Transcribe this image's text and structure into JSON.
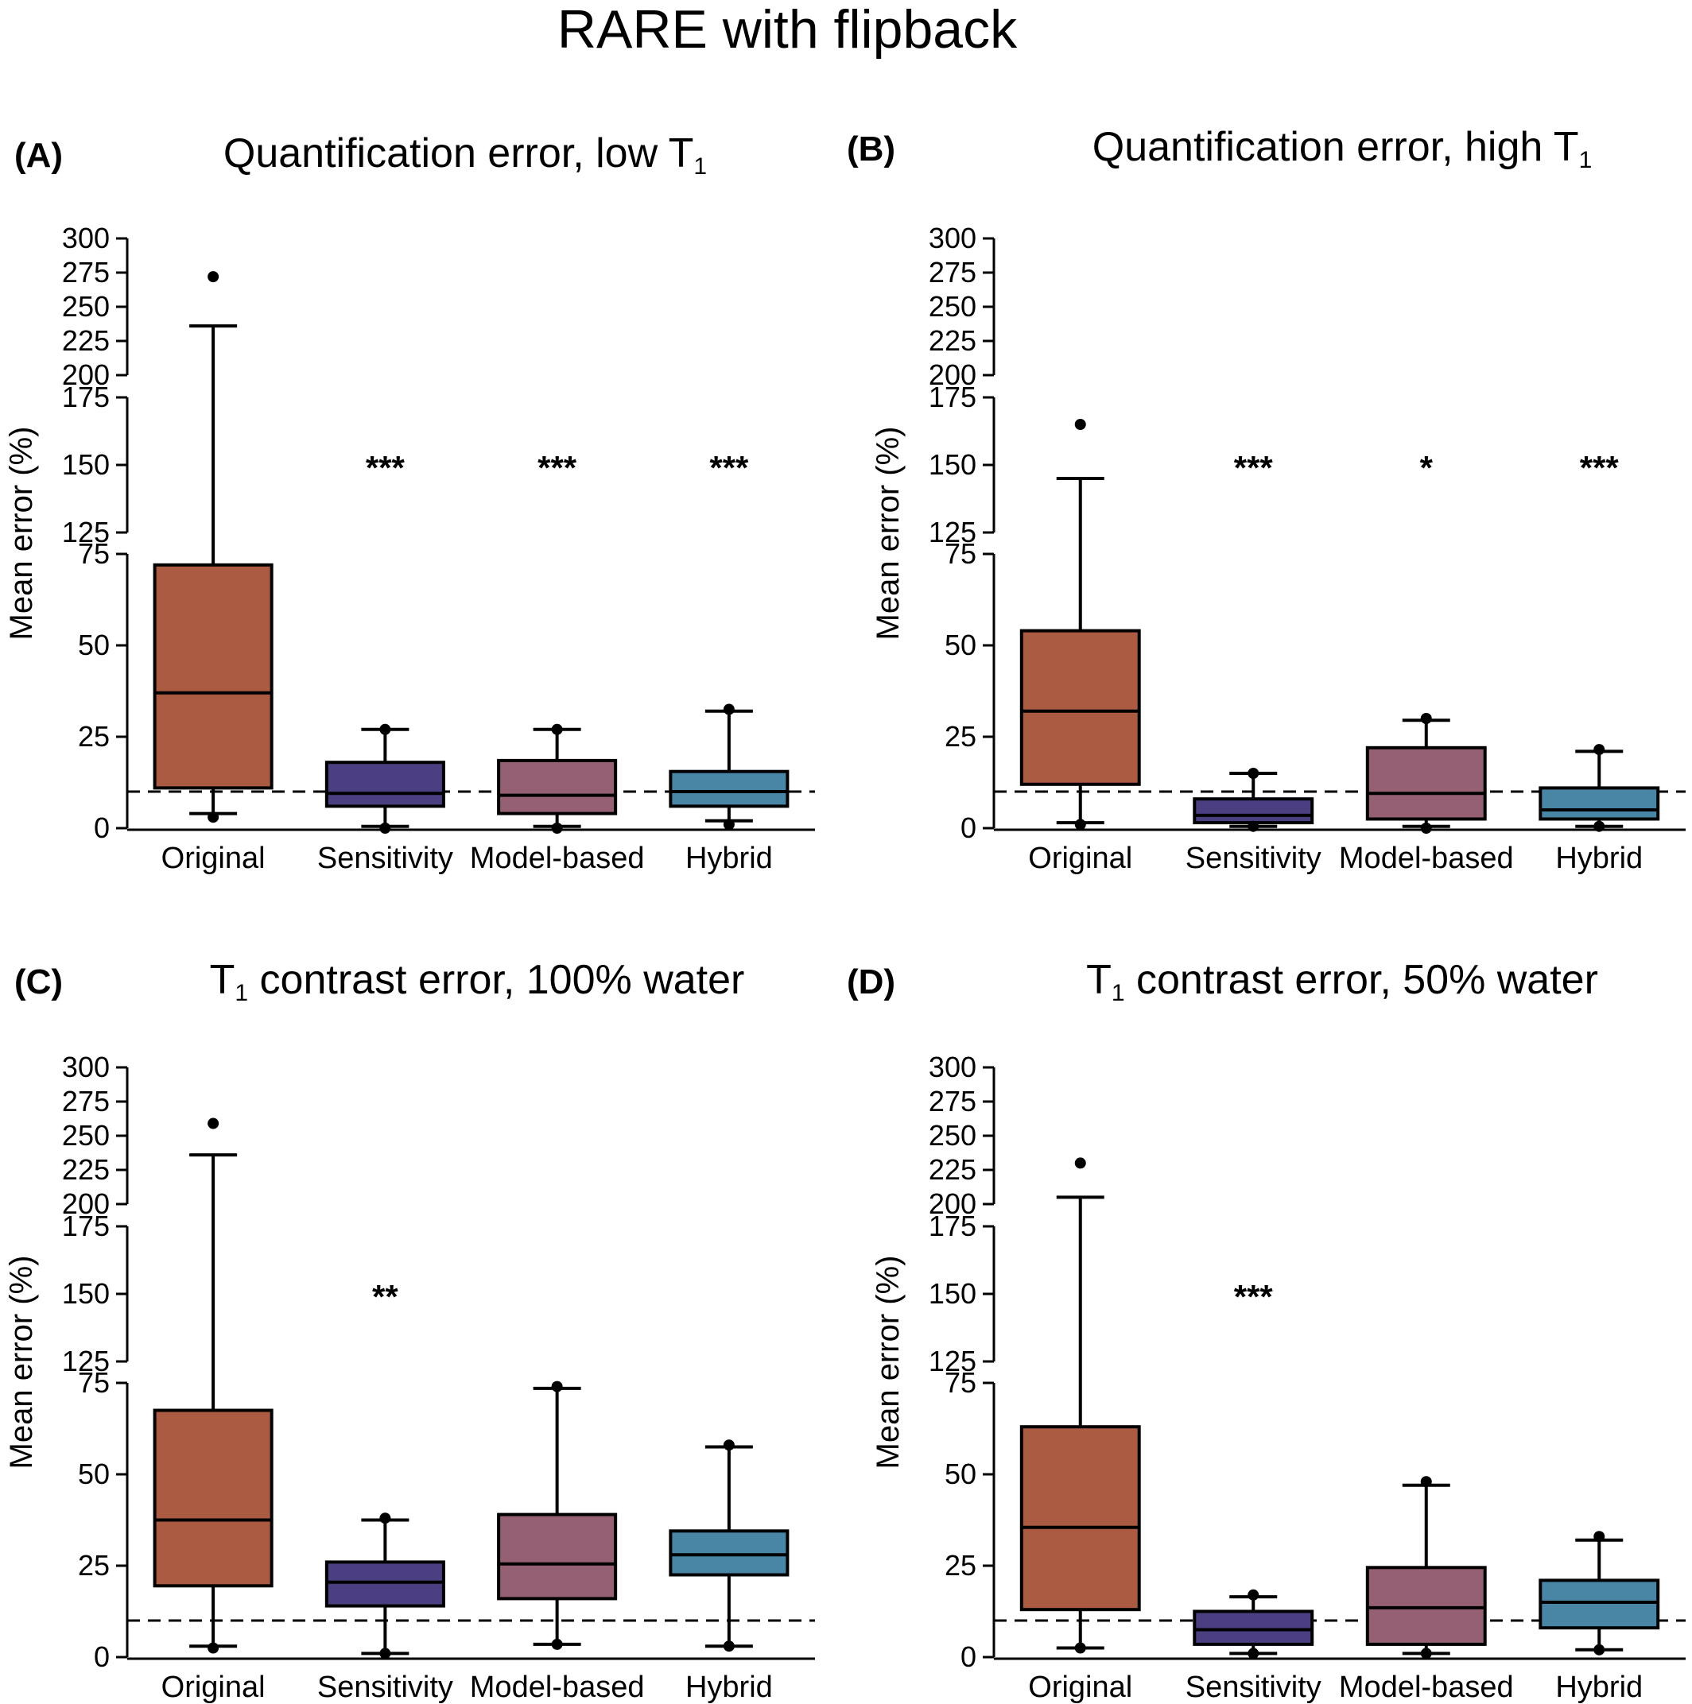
{
  "figure_title": "RARE with flipback",
  "colors": {
    "Original": "#ab5b42",
    "Sensitivity": "#4b3f82",
    "Model-based": "#966074",
    "Hybrid": "#4986a6",
    "reference_line": "#000000"
  },
  "chart_data": [
    {
      "type": "box",
      "panel_label": "(A)",
      "title_main": "Quantification error, low T",
      "title_sub": "1",
      "title_suffix": "",
      "ylabel": "Mean error (%)",
      "categories": [
        "Original",
        "Sensitivity",
        "Model-based",
        "Hybrid"
      ],
      "broken_axis": [
        [
          0,
          75
        ],
        [
          125,
          175
        ],
        [
          200,
          300
        ]
      ],
      "yticks": [
        [
          0,
          25,
          50,
          75
        ],
        [
          125,
          150,
          175
        ],
        [
          200,
          225,
          250,
          275,
          300
        ]
      ],
      "reference_line": 10,
      "boxes": [
        {
          "category": "Original",
          "q1": 11,
          "median": 37,
          "q3": 72,
          "whisker_low": 4,
          "whisker_high": 236,
          "outliers_low": [
            3
          ],
          "outliers_high": [
            272
          ],
          "significance": ""
        },
        {
          "category": "Sensitivity",
          "q1": 6,
          "median": 9.5,
          "q3": 18,
          "whisker_low": 0.5,
          "whisker_high": 27,
          "outliers_low": [
            0
          ],
          "outliers_high": [
            27
          ],
          "significance": "***"
        },
        {
          "category": "Model-based",
          "q1": 4,
          "median": 9,
          "q3": 18.5,
          "whisker_low": 0.5,
          "whisker_high": 27,
          "outliers_low": [
            0
          ],
          "outliers_high": [
            27
          ],
          "significance": "***"
        },
        {
          "category": "Hybrid",
          "q1": 6,
          "median": 10,
          "q3": 15.5,
          "whisker_low": 2,
          "whisker_high": 32,
          "outliers_low": [
            1
          ],
          "outliers_high": [
            32.5
          ],
          "significance": "***"
        }
      ]
    },
    {
      "type": "box",
      "panel_label": "(B)",
      "title_main": "Quantification error, high T",
      "title_sub": "1",
      "title_suffix": "",
      "ylabel": "Mean error (%)",
      "categories": [
        "Original",
        "Sensitivity",
        "Model-based",
        "Hybrid"
      ],
      "broken_axis": [
        [
          0,
          75
        ],
        [
          125,
          175
        ],
        [
          200,
          300
        ]
      ],
      "yticks": [
        [
          0,
          25,
          50,
          75
        ],
        [
          125,
          150,
          175
        ],
        [
          200,
          225,
          250,
          275,
          300
        ]
      ],
      "reference_line": 10,
      "boxes": [
        {
          "category": "Original",
          "q1": 12,
          "median": 32,
          "q3": 54,
          "whisker_low": 1.5,
          "whisker_high": 145,
          "outliers_low": [
            1
          ],
          "outliers_high": [
            165
          ],
          "significance": ""
        },
        {
          "category": "Sensitivity",
          "q1": 1.5,
          "median": 3.5,
          "q3": 8,
          "whisker_low": 0.5,
          "whisker_high": 15,
          "outliers_low": [
            0.5
          ],
          "outliers_high": [
            15
          ],
          "significance": "***"
        },
        {
          "category": "Model-based",
          "q1": 2.5,
          "median": 9.5,
          "q3": 22,
          "whisker_low": 0.5,
          "whisker_high": 29.5,
          "outliers_low": [
            0
          ],
          "outliers_high": [
            30
          ],
          "significance": "*"
        },
        {
          "category": "Hybrid",
          "q1": 2.5,
          "median": 5,
          "q3": 11,
          "whisker_low": 0.5,
          "whisker_high": 21,
          "outliers_low": [
            0.5
          ],
          "outliers_high": [
            21.5
          ],
          "significance": "***"
        }
      ]
    },
    {
      "type": "box",
      "panel_label": "(C)",
      "title_main": "T",
      "title_sub": "1",
      "title_suffix": " contrast error, 100% water",
      "ylabel": "Mean error (%)",
      "categories": [
        "Original",
        "Sensitivity",
        "Model-based",
        "Hybrid"
      ],
      "broken_axis": [
        [
          0,
          75
        ],
        [
          125,
          175
        ],
        [
          200,
          300
        ]
      ],
      "yticks": [
        [
          0,
          25,
          50,
          75
        ],
        [
          125,
          150,
          175
        ],
        [
          200,
          225,
          250,
          275,
          300
        ]
      ],
      "reference_line": 10,
      "boxes": [
        {
          "category": "Original",
          "q1": 19.5,
          "median": 37.5,
          "q3": 67.5,
          "whisker_low": 3,
          "whisker_high": 236,
          "outliers_low": [
            2.5
          ],
          "outliers_high": [
            259
          ],
          "significance": ""
        },
        {
          "category": "Sensitivity",
          "q1": 14,
          "median": 20.5,
          "q3": 26,
          "whisker_low": 1,
          "whisker_high": 37.5,
          "outliers_low": [
            1
          ],
          "outliers_high": [
            38
          ],
          "significance": "**"
        },
        {
          "category": "Model-based",
          "q1": 16,
          "median": 25.5,
          "q3": 39,
          "whisker_low": 3.5,
          "whisker_high": 73.5,
          "outliers_low": [
            3.5
          ],
          "outliers_high": [
            74
          ],
          "significance": ""
        },
        {
          "category": "Hybrid",
          "q1": 22.5,
          "median": 28,
          "q3": 34.5,
          "whisker_low": 3,
          "whisker_high": 57.5,
          "outliers_low": [
            3
          ],
          "outliers_high": [
            58
          ],
          "significance": ""
        }
      ]
    },
    {
      "type": "box",
      "panel_label": "(D)",
      "title_main": "T",
      "title_sub": "1",
      "title_suffix": " contrast error, 50% water",
      "ylabel": "Mean error (%)",
      "categories": [
        "Original",
        "Sensitivity",
        "Model-based",
        "Hybrid"
      ],
      "broken_axis": [
        [
          0,
          75
        ],
        [
          125,
          175
        ],
        [
          200,
          300
        ]
      ],
      "yticks": [
        [
          0,
          25,
          50,
          75
        ],
        [
          125,
          150,
          175
        ],
        [
          200,
          225,
          250,
          275,
          300
        ]
      ],
      "reference_line": 10,
      "boxes": [
        {
          "category": "Original",
          "q1": 13,
          "median": 35.5,
          "q3": 63,
          "whisker_low": 2.5,
          "whisker_high": 205,
          "outliers_low": [
            2.5
          ],
          "outliers_high": [
            230
          ],
          "significance": ""
        },
        {
          "category": "Sensitivity",
          "q1": 3.5,
          "median": 7.5,
          "q3": 12.5,
          "whisker_low": 1,
          "whisker_high": 16.5,
          "outliers_low": [
            1
          ],
          "outliers_high": [
            17
          ],
          "significance": "***"
        },
        {
          "category": "Model-based",
          "q1": 3.5,
          "median": 13.5,
          "q3": 24.5,
          "whisker_low": 1,
          "whisker_high": 47,
          "outliers_low": [
            1
          ],
          "outliers_high": [
            48
          ],
          "significance": ""
        },
        {
          "category": "Hybrid",
          "q1": 8,
          "median": 15,
          "q3": 21,
          "whisker_low": 2,
          "whisker_high": 32,
          "outliers_low": [
            2
          ],
          "outliers_high": [
            33
          ],
          "significance": ""
        }
      ]
    }
  ]
}
